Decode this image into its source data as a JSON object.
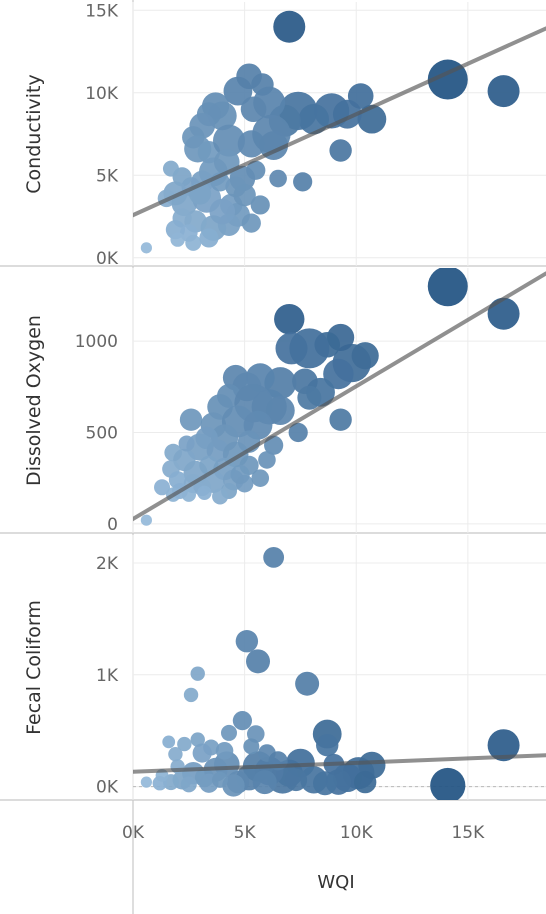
{
  "chart_data": {
    "type": "scatter",
    "x_label": "WQI",
    "x_ticks": [
      "0K",
      "5K",
      "10K",
      "15K"
    ],
    "x_range": [
      0,
      18500
    ],
    "panels": [
      {
        "ylabel": "Conductivity",
        "y_ticks": [
          "0K",
          "5K",
          "10K",
          "15K"
        ],
        "y_range": [
          -500,
          15500
        ],
        "trend": [
          [
            -300,
            2400
          ],
          [
            18500,
            13900
          ]
        ],
        "points": [
          [
            7000,
            14000,
            1.0,
            0.92
          ],
          [
            14100,
            10800,
            1.25,
            0.97
          ],
          [
            16600,
            10100,
            1.0,
            0.9
          ],
          [
            10200,
            9800,
            0.8,
            0.75
          ],
          [
            10700,
            8400,
            0.9,
            0.78
          ],
          [
            9300,
            6500,
            0.7,
            0.68
          ],
          [
            7600,
            4600,
            0.6,
            0.6
          ],
          [
            8900,
            8900,
            1.1,
            0.72
          ],
          [
            9600,
            8700,
            0.9,
            0.72
          ],
          [
            7400,
            8900,
            1.2,
            0.7
          ],
          [
            8100,
            8400,
            0.95,
            0.7
          ],
          [
            6800,
            8300,
            1.0,
            0.66
          ],
          [
            4700,
            10100,
            0.9,
            0.58
          ],
          [
            5200,
            11000,
            0.8,
            0.6
          ],
          [
            5800,
            10500,
            0.7,
            0.6
          ],
          [
            6100,
            9400,
            1.0,
            0.58
          ],
          [
            3700,
            9200,
            0.85,
            0.5
          ],
          [
            4000,
            8600,
            0.9,
            0.48
          ],
          [
            5400,
            9000,
            0.8,
            0.56
          ],
          [
            3400,
            8700,
            0.75,
            0.48
          ],
          [
            3100,
            8000,
            0.8,
            0.46
          ],
          [
            2700,
            7300,
            0.7,
            0.44
          ],
          [
            2900,
            6600,
            0.85,
            0.42
          ],
          [
            3400,
            6400,
            0.7,
            0.4
          ],
          [
            4300,
            7100,
            1.0,
            0.5
          ],
          [
            5300,
            6900,
            0.85,
            0.52
          ],
          [
            6300,
            6800,
            0.9,
            0.56
          ],
          [
            6200,
            7500,
            1.2,
            0.56
          ],
          [
            4900,
            4800,
            0.8,
            0.5
          ],
          [
            5500,
            5300,
            0.6,
            0.5
          ],
          [
            3600,
            5200,
            0.9,
            0.4
          ],
          [
            4200,
            5800,
            0.8,
            0.42
          ],
          [
            3100,
            4600,
            0.7,
            0.36
          ],
          [
            2600,
            4300,
            0.6,
            0.34
          ],
          [
            2200,
            4900,
            0.6,
            0.32
          ],
          [
            1700,
            5400,
            0.5,
            0.28
          ],
          [
            1900,
            3900,
            0.75,
            0.3
          ],
          [
            1500,
            3600,
            0.55,
            0.26
          ],
          [
            2300,
            3300,
            0.8,
            0.3
          ],
          [
            3300,
            3600,
            0.9,
            0.34
          ],
          [
            4400,
            3200,
            0.7,
            0.38
          ],
          [
            5700,
            3200,
            0.6,
            0.48
          ],
          [
            4700,
            2600,
            0.75,
            0.4
          ],
          [
            4300,
            2000,
            0.7,
            0.36
          ],
          [
            5300,
            2100,
            0.6,
            0.42
          ],
          [
            3600,
            1800,
            0.8,
            0.32
          ],
          [
            2800,
            2200,
            0.7,
            0.28
          ],
          [
            2200,
            2400,
            0.6,
            0.26
          ],
          [
            1900,
            1700,
            0.6,
            0.24
          ],
          [
            2500,
            1500,
            0.55,
            0.22
          ],
          [
            3400,
            1200,
            0.6,
            0.24
          ],
          [
            4000,
            2800,
            0.8,
            0.34
          ],
          [
            5000,
            3800,
            0.7,
            0.44
          ],
          [
            2700,
            900,
            0.5,
            0.2
          ],
          [
            2000,
            1100,
            0.45,
            0.18
          ],
          [
            3000,
            3900,
            0.7,
            0.32
          ],
          [
            600,
            600,
            0.35,
            0.15
          ],
          [
            4600,
            4300,
            0.65,
            0.44
          ],
          [
            3900,
            4600,
            0.6,
            0.4
          ],
          [
            6500,
            4800,
            0.55,
            0.54
          ]
        ]
      },
      {
        "ylabel": "Dissolved Oxygen",
        "y_ticks": [
          "0",
          "500",
          "1000"
        ],
        "y_range": [
          -50,
          1400
        ],
        "trend": [
          [
            -300,
            5
          ],
          [
            18500,
            1370
          ]
        ],
        "points": [
          [
            14100,
            1300,
            1.25,
            0.97
          ],
          [
            16600,
            1150,
            1.0,
            0.9
          ],
          [
            7000,
            1120,
            0.95,
            0.88
          ],
          [
            9300,
            570,
            0.7,
            0.66
          ],
          [
            7400,
            500,
            0.6,
            0.6
          ],
          [
            10400,
            920,
            0.85,
            0.78
          ],
          [
            9800,
            880,
            1.2,
            0.76
          ],
          [
            9300,
            1020,
            0.85,
            0.8
          ],
          [
            8700,
            980,
            0.8,
            0.78
          ],
          [
            7900,
            960,
            1.25,
            0.74
          ],
          [
            7100,
            960,
            1.0,
            0.72
          ],
          [
            9200,
            820,
            0.95,
            0.72
          ],
          [
            7700,
            780,
            0.8,
            0.68
          ],
          [
            8400,
            720,
            0.9,
            0.7
          ],
          [
            7900,
            690,
            0.75,
            0.66
          ],
          [
            6600,
            770,
            1.0,
            0.62
          ],
          [
            5700,
            800,
            0.9,
            0.58
          ],
          [
            4600,
            800,
            0.8,
            0.56
          ],
          [
            5100,
            750,
            0.9,
            0.54
          ],
          [
            4300,
            700,
            0.75,
            0.5
          ],
          [
            6100,
            640,
            1.1,
            0.58
          ],
          [
            5400,
            660,
            1.2,
            0.55
          ],
          [
            3900,
            640,
            0.8,
            0.48
          ],
          [
            6600,
            620,
            0.9,
            0.56
          ],
          [
            2600,
            570,
            0.7,
            0.42
          ],
          [
            3600,
            540,
            0.8,
            0.44
          ],
          [
            4700,
            560,
            1.0,
            0.5
          ],
          [
            5600,
            540,
            0.9,
            0.52
          ],
          [
            4100,
            470,
            0.85,
            0.44
          ],
          [
            5200,
            450,
            0.7,
            0.46
          ],
          [
            3300,
            470,
            0.7,
            0.38
          ],
          [
            3000,
            420,
            0.85,
            0.36
          ],
          [
            3800,
            400,
            0.7,
            0.38
          ],
          [
            4600,
            380,
            0.8,
            0.42
          ],
          [
            6300,
            430,
            0.6,
            0.5
          ],
          [
            1800,
            390,
            0.55,
            0.28
          ],
          [
            2300,
            350,
            0.7,
            0.3
          ],
          [
            1700,
            300,
            0.55,
            0.26
          ],
          [
            2800,
            280,
            0.75,
            0.3
          ],
          [
            3400,
            320,
            0.6,
            0.32
          ],
          [
            4100,
            300,
            0.7,
            0.36
          ],
          [
            5200,
            320,
            0.6,
            0.42
          ],
          [
            2000,
            240,
            0.55,
            0.24
          ],
          [
            2700,
            220,
            0.6,
            0.26
          ],
          [
            3600,
            230,
            0.7,
            0.3
          ],
          [
            4500,
            240,
            0.65,
            0.36
          ],
          [
            1300,
            200,
            0.5,
            0.22
          ],
          [
            2100,
            180,
            0.5,
            0.22
          ],
          [
            3100,
            200,
            0.55,
            0.26
          ],
          [
            4300,
            180,
            0.5,
            0.32
          ],
          [
            1800,
            160,
            0.45,
            0.2
          ],
          [
            2500,
            160,
            0.45,
            0.2
          ],
          [
            3200,
            170,
            0.45,
            0.22
          ],
          [
            3900,
            150,
            0.5,
            0.26
          ],
          [
            5000,
            220,
            0.55,
            0.38
          ],
          [
            5700,
            250,
            0.55,
            0.42
          ],
          [
            600,
            20,
            0.35,
            0.15
          ],
          [
            4800,
            270,
            0.6,
            0.4
          ],
          [
            6000,
            350,
            0.55,
            0.46
          ],
          [
            2400,
            440,
            0.5,
            0.34
          ]
        ]
      },
      {
        "ylabel": "Fecal Coliform",
        "y_ticks": [
          "0K",
          "1K",
          "2K"
        ],
        "y_range": [
          -120,
          2250
        ],
        "trend": [
          [
            -300,
            130
          ],
          [
            18500,
            280
          ]
        ],
        "points": [
          [
            6300,
            2050,
            0.65,
            0.6
          ],
          [
            5100,
            1300,
            0.7,
            0.58
          ],
          [
            5600,
            1120,
            0.75,
            0.6
          ],
          [
            7800,
            920,
            0.75,
            0.62
          ],
          [
            2900,
            1010,
            0.45,
            0.3
          ],
          [
            2600,
            820,
            0.45,
            0.28
          ],
          [
            8700,
            470,
            0.9,
            0.78
          ],
          [
            8700,
            370,
            0.7,
            0.7
          ],
          [
            16600,
            370,
            1.0,
            0.9
          ],
          [
            14100,
            10,
            1.1,
            0.97
          ],
          [
            10700,
            190,
            0.85,
            0.78
          ],
          [
            10100,
            120,
            1.0,
            0.76
          ],
          [
            9600,
            80,
            0.9,
            0.74
          ],
          [
            9200,
            40,
            0.8,
            0.72
          ],
          [
            8600,
            30,
            0.75,
            0.7
          ],
          [
            7500,
            210,
            0.9,
            0.74
          ],
          [
            7000,
            120,
            0.85,
            0.72
          ],
          [
            6700,
            80,
            1.0,
            0.68
          ],
          [
            6100,
            140,
            0.9,
            0.64
          ],
          [
            5600,
            180,
            0.95,
            0.62
          ],
          [
            5200,
            80,
            0.8,
            0.6
          ],
          [
            4700,
            40,
            0.7,
            0.55
          ],
          [
            4200,
            200,
            0.8,
            0.5
          ],
          [
            3700,
            150,
            0.75,
            0.46
          ],
          [
            3200,
            80,
            0.6,
            0.42
          ],
          [
            2700,
            120,
            0.7,
            0.38
          ],
          [
            2200,
            60,
            0.6,
            0.32
          ],
          [
            1700,
            40,
            0.5,
            0.28
          ],
          [
            1200,
            30,
            0.45,
            0.22
          ],
          [
            4900,
            590,
            0.6,
            0.5
          ],
          [
            5500,
            470,
            0.55,
            0.46
          ],
          [
            4300,
            480,
            0.5,
            0.42
          ],
          [
            3500,
            350,
            0.5,
            0.36
          ],
          [
            2900,
            420,
            0.45,
            0.32
          ],
          [
            2300,
            380,
            0.45,
            0.28
          ],
          [
            1900,
            290,
            0.45,
            0.26
          ],
          [
            1600,
            400,
            0.4,
            0.24
          ],
          [
            3100,
            300,
            0.6,
            0.34
          ],
          [
            4100,
            320,
            0.55,
            0.4
          ],
          [
            5300,
            360,
            0.5,
            0.48
          ],
          [
            6000,
            300,
            0.55,
            0.54
          ],
          [
            6500,
            230,
            0.6,
            0.6
          ],
          [
            8100,
            60,
            0.85,
            0.7
          ],
          [
            3400,
            30,
            0.6,
            0.38
          ],
          [
            2500,
            20,
            0.5,
            0.3
          ],
          [
            4500,
            10,
            0.7,
            0.46
          ],
          [
            7300,
            60,
            0.7,
            0.68
          ],
          [
            9000,
            200,
            0.65,
            0.72
          ],
          [
            5900,
            40,
            0.75,
            0.58
          ],
          [
            3900,
            60,
            0.5,
            0.42
          ],
          [
            2000,
            180,
            0.45,
            0.26
          ],
          [
            1300,
            100,
            0.4,
            0.2
          ],
          [
            600,
            40,
            0.35,
            0.15
          ],
          [
            10400,
            40,
            0.7,
            0.78
          ]
        ]
      }
    ],
    "colors": {
      "light": "#a9cce9",
      "dark": "#1d4e7f",
      "trend": "#555555",
      "grid": "#ececec",
      "border": "#c8c8c8",
      "zero_line": "#b9b9b9"
    }
  }
}
